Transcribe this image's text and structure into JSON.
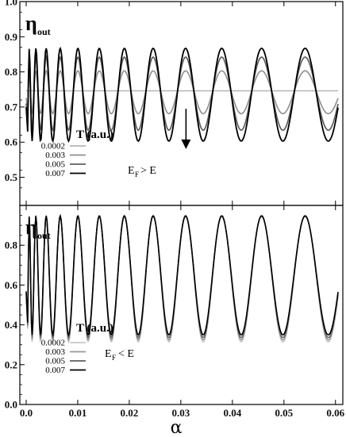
{
  "chart_data": [
    {
      "type": "line",
      "ylabel": "η",
      "ylabel_sub": "out",
      "xlim": [
        0,
        0.0605
      ],
      "ylim": [
        0.42,
        1.0
      ],
      "yticks": [
        "0.5",
        "0.6",
        "0.7",
        "0.8",
        "0.9",
        "1.0"
      ],
      "ytick_values": [
        0.5,
        0.6,
        0.7,
        0.8,
        0.9,
        1.0
      ],
      "legend_title": "T (a.u.)",
      "legend_position": "bottom-left",
      "annotation_main": "E",
      "annotation_sub": "F",
      "annotation_rest": "> E",
      "arrow": {
        "x": 0.031,
        "y_from": 0.695,
        "y_to": 0.585
      },
      "curve_params": {
        "phase_start": 1.3,
        "phase_scale": 10.5,
        "phase_power": 0.5
      },
      "series": [
        {
          "name": "0.0002",
          "color": "#b5b5b5",
          "width": 1.5,
          "center": 0.746,
          "amplitude": 0.0
        },
        {
          "name": "0.003",
          "color": "#8e8e8e",
          "width": 1.6,
          "center": 0.742,
          "amplitude": 0.061
        },
        {
          "name": "0.005",
          "color": "#5e5e5e",
          "width": 1.7,
          "center": 0.738,
          "amplitude": 0.104
        },
        {
          "name": "0.007",
          "color": "#000000",
          "width": 1.8,
          "center": 0.735,
          "amplitude": 0.132
        }
      ]
    },
    {
      "type": "line",
      "xlabel": "α",
      "ylabel": "η",
      "ylabel_sub": "out",
      "xlim": [
        0,
        0.0605
      ],
      "ylim": [
        0.0,
        1.0
      ],
      "xticks": [
        "0.0",
        "0.01",
        "0.02",
        "0.03",
        "0.04",
        "0.05",
        "0.06"
      ],
      "xtick_values": [
        0.0,
        0.01,
        0.02,
        0.03,
        0.04,
        0.05,
        0.06
      ],
      "yticks": [
        "0.0",
        "0.2",
        "0.4",
        "0.6",
        "0.8"
      ],
      "ytick_values": [
        0.0,
        0.2,
        0.4,
        0.6,
        0.8
      ],
      "legend_title": "T (a.u.)",
      "legend_position": "bottom-left",
      "annotation_main": "E",
      "annotation_sub": "F",
      "annotation_rest": "< E",
      "curve_params": {
        "phase_start": 1.3,
        "phase_scale": 10.5,
        "phase_power": 0.5
      },
      "series": [
        {
          "name": "0.0002",
          "color": "#c8c8c8",
          "width": 1.5,
          "center": 0.632,
          "amplitude": 0.318
        },
        {
          "name": "0.003",
          "color": "#979797",
          "width": 1.5,
          "center": 0.637,
          "amplitude": 0.313
        },
        {
          "name": "0.005",
          "color": "#616161",
          "width": 1.5,
          "center": 0.642,
          "amplitude": 0.306
        },
        {
          "name": "0.007",
          "color": "#000000",
          "width": 1.6,
          "center": 0.648,
          "amplitude": 0.298
        }
      ]
    }
  ]
}
